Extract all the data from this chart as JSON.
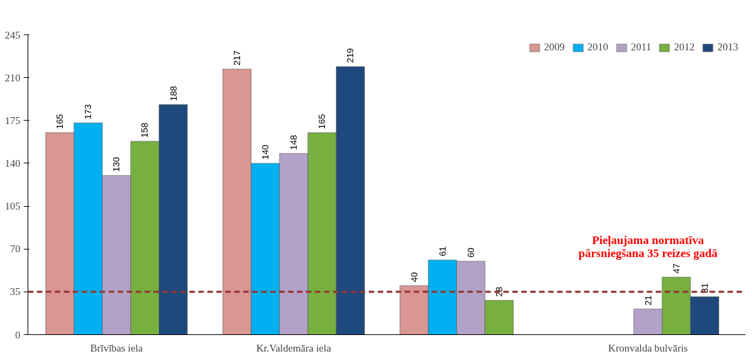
{
  "chart_data": {
    "type": "bar",
    "categories": [
      "Brīvības iela",
      "Kr.Valdemāra iela",
      null,
      "Kronvalda bulvāris"
    ],
    "series": [
      {
        "name": "2009",
        "color": "#d99694",
        "values": [
          165,
          217,
          40,
          null
        ]
      },
      {
        "name": "2010",
        "color": "#00b0f0",
        "values": [
          173,
          140,
          61,
          null
        ]
      },
      {
        "name": "2011",
        "color": "#b3a2c7",
        "values": [
          130,
          148,
          60,
          21
        ]
      },
      {
        "name": "2012",
        "color": "#77b041",
        "values": [
          158,
          165,
          28,
          47
        ]
      },
      {
        "name": "2013",
        "color": "#1f497d",
        "values": [
          188,
          219,
          null,
          31
        ]
      }
    ],
    "ylim": [
      0,
      245
    ],
    "yticks": [
      0,
      35,
      70,
      105,
      140,
      175,
      210,
      245
    ],
    "ref_lines": [
      {
        "axis": "y",
        "value": 35,
        "label": "Pieļaujama normatīva\npārsniegšana 35 reizes gadā",
        "color": "#953735",
        "line_style": "dashed"
      }
    ],
    "data_labels": true,
    "legend": "top right",
    "grid": false
  }
}
